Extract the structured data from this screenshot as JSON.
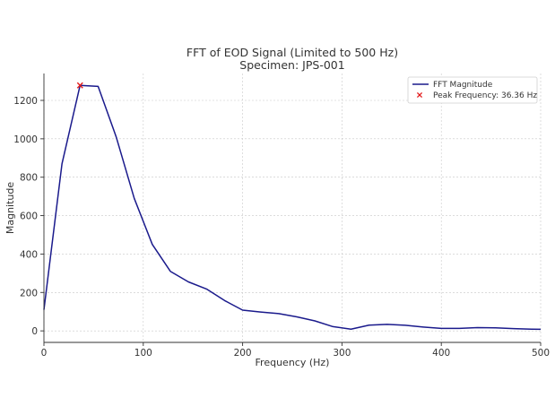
{
  "chart_data": {
    "type": "line",
    "title": "FFT of EOD Signal (Limited to 500 Hz)",
    "subtitle": "Specimen: JPS-001",
    "xlabel": "Frequency (Hz)",
    "ylabel": "Magnitude",
    "xlim": [
      0,
      500
    ],
    "ylim": [
      -60,
      1340
    ],
    "xticks": [
      0,
      100,
      200,
      300,
      400,
      500
    ],
    "yticks": [
      0,
      200,
      400,
      600,
      800,
      1000,
      1200
    ],
    "grid": true,
    "legend_position": "top-right",
    "series": [
      {
        "name": "FFT Magnitude",
        "color": "#1a1a8c",
        "x": [
          0,
          18.18,
          36.36,
          54.55,
          72.73,
          90.91,
          109.09,
          127.27,
          145.45,
          163.64,
          181.82,
          200,
          218.18,
          236.36,
          254.55,
          272.73,
          290.91,
          309.09,
          327.27,
          345.45,
          363.64,
          381.82,
          400,
          418.18,
          436.36,
          454.55,
          472.73,
          490.91,
          500
        ],
        "values": [
          110,
          870,
          1278,
          1273,
          1010,
          690,
          450,
          310,
          255,
          218,
          158,
          108,
          98,
          90,
          73,
          52,
          22,
          9,
          30,
          34,
          29,
          20,
          13,
          13,
          17,
          16,
          12,
          9,
          8
        ]
      }
    ],
    "peak": {
      "label": "Peak Frequency: 36.36 Hz",
      "x": 36.36,
      "y": 1278,
      "marker": "x",
      "color": "#e31a1c"
    }
  }
}
